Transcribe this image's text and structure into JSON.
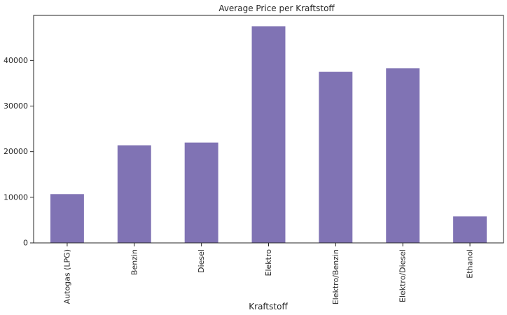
{
  "chart_data": {
    "type": "bar",
    "title": "Average Price per Kraftstoff",
    "xlabel": "Kraftstoff",
    "ylabel": "",
    "categories": [
      "Autogas (LPG)",
      "Benzin",
      "Diesel",
      "Elektro",
      "Elektro/Benzin",
      "Elektro/Diesel",
      "Ethanol"
    ],
    "values": [
      10700,
      21400,
      22000,
      47500,
      37500,
      38300,
      5800
    ],
    "ylim": [
      0,
      49875
    ],
    "yticks": [
      0,
      10000,
      20000,
      30000,
      40000
    ],
    "grid": false,
    "legend": "none",
    "colors": {
      "bar": "#8073b4",
      "axis": "#262626",
      "background": "#ffffff"
    }
  }
}
